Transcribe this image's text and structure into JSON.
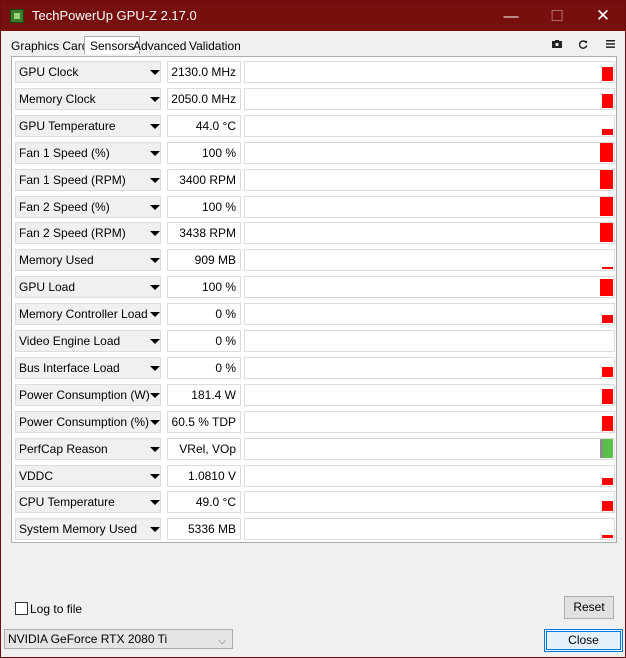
{
  "window": {
    "title": "TechPowerUp GPU-Z 2.17.0",
    "min_glyph": "—",
    "max_glyph": "☐",
    "close_glyph": "✕"
  },
  "tabs": [
    {
      "label": "Graphics Card",
      "active": false
    },
    {
      "label": "Sensors",
      "active": true
    },
    {
      "label": "Advanced",
      "active": false
    },
    {
      "label": "Validation",
      "active": false
    }
  ],
  "toolbar": {
    "icons": [
      "camera-icon",
      "refresh-icon",
      "menu-icon"
    ]
  },
  "sensors": [
    {
      "name": "GPU Clock",
      "value": "2130.0 MHz",
      "graph_level": 0.75,
      "color": "#ff0000"
    },
    {
      "name": "Memory Clock",
      "value": "2050.0 MHz",
      "graph_level": 0.75,
      "color": "#ff0000"
    },
    {
      "name": "GPU Temperature",
      "value": "44.0 °C",
      "graph_level": 0.3,
      "color": "#ff0000"
    },
    {
      "name": "Fan 1 Speed (%)",
      "value": "100 %",
      "graph_level": 1.0,
      "color": "#ff0000"
    },
    {
      "name": "Fan 1 Speed (RPM)",
      "value": "3400 RPM",
      "graph_level": 1.0,
      "color": "#ff0000"
    },
    {
      "name": "Fan 2 Speed (%)",
      "value": "100 %",
      "graph_level": 1.0,
      "color": "#ff0000"
    },
    {
      "name": "Fan 2 Speed (RPM)",
      "value": "3438 RPM",
      "graph_level": 1.0,
      "color": "#ff0000"
    },
    {
      "name": "Memory Used",
      "value": "909 MB",
      "graph_level": 0.1,
      "color": "#ff0000"
    },
    {
      "name": "GPU Load",
      "value": "100 %",
      "graph_level": 0.9,
      "color": "#ff0000"
    },
    {
      "name": "Memory Controller Load",
      "value": "0 %",
      "graph_level": 0.4,
      "color": "#ff0000"
    },
    {
      "name": "Video Engine Load",
      "value": "0 %",
      "graph_level": 0.0,
      "color": "#ff0000"
    },
    {
      "name": "Bus Interface Load",
      "value": "0 %",
      "graph_level": 0.5,
      "color": "#ff0000"
    },
    {
      "name": "Power Consumption (W)",
      "value": "181.4 W",
      "graph_level": 0.8,
      "color": "#ff0000"
    },
    {
      "name": "Power Consumption (%)",
      "value": "60.5 % TDP",
      "graph_level": 0.8,
      "color": "#ff0000"
    },
    {
      "name": "PerfCap Reason",
      "value": "VRel, VOp",
      "graph_level": 1.0,
      "color": "#5bbf4a"
    },
    {
      "name": "VDDC",
      "value": "1.0810 V",
      "graph_level": 0.35,
      "color": "#ff0000"
    },
    {
      "name": "CPU Temperature",
      "value": "49.0 °C",
      "graph_level": 0.5,
      "color": "#ff0000"
    },
    {
      "name": "System Memory Used",
      "value": "5336 MB",
      "graph_level": 0.15,
      "color": "#ff0000"
    }
  ],
  "footer": {
    "log_to_file_label": "Log to file",
    "log_to_file_checked": false,
    "reset_label": "Reset",
    "gpu_selected": "NVIDIA GeForce RTX 2080 Ti",
    "close_label": "Close"
  }
}
